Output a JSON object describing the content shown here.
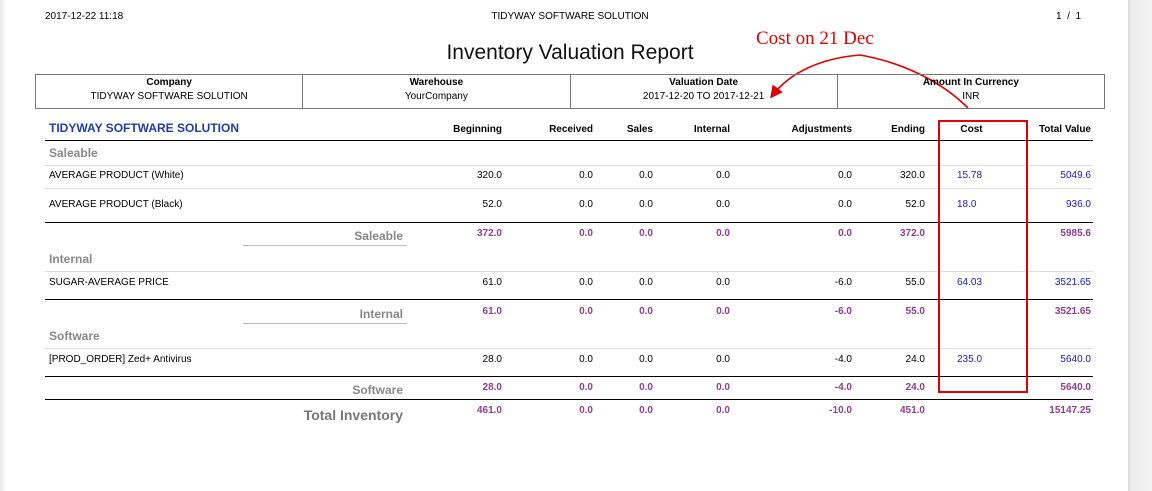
{
  "header": {
    "datetime": "2017-12-22 11:18",
    "company": "TIDYWAY SOFTWARE SOLUTION",
    "page_current": "1",
    "page_sep": "/",
    "page_total": "1"
  },
  "title": "Inventory Valuation Report",
  "annotation": "Cost on 21 Dec",
  "annotation_color": "#e00000",
  "info": [
    {
      "label": "Company",
      "value": "TIDYWAY SOFTWARE SOLUTION"
    },
    {
      "label": "Warehouse",
      "value": "YourCompany"
    },
    {
      "label": "Valuation Date",
      "value": "2017-12-20 TO 2017-12-21"
    },
    {
      "label": "Amount In Currency",
      "value": "INR"
    }
  ],
  "table": {
    "company": "TIDYWAY SOFTWARE SOLUTION",
    "columns": [
      "Beginning",
      "Received",
      "Sales",
      "Internal",
      "Adjustments",
      "Ending",
      "Cost",
      "Total Value"
    ],
    "categories": [
      {
        "name": "Saleable",
        "products": [
          {
            "name": "AVERAGE PRODUCT (White)",
            "values": [
              "320.0",
              "0.0",
              "0.0",
              "0.0",
              "0.0",
              "320.0",
              "15.78",
              "5049.6"
            ]
          },
          {
            "name": "AVERAGE PRODUCT (Black)",
            "values": [
              "52.0",
              "0.0",
              "0.0",
              "0.0",
              "0.0",
              "52.0",
              "18.0",
              "936.0"
            ]
          }
        ],
        "subtotal": {
          "label": "Saleable",
          "values": [
            "372.0",
            "0.0",
            "0.0",
            "0.0",
            "0.0",
            "372.0",
            "",
            "5985.6"
          ]
        }
      },
      {
        "name": "Internal",
        "products": [
          {
            "name": "SUGAR-AVERAGE PRICE",
            "values": [
              "61.0",
              "0.0",
              "0.0",
              "0.0",
              "-6.0",
              "55.0",
              "64.03",
              "3521.65"
            ]
          }
        ],
        "subtotal": {
          "label": "Internal",
          "values": [
            "61.0",
            "0.0",
            "0.0",
            "0.0",
            "-6.0",
            "55.0",
            "",
            "3521.65"
          ]
        }
      },
      {
        "name": "Software",
        "products": [
          {
            "name": "[PROD_ORDER] Zed+ Antivirus",
            "values": [
              "28.0",
              "0.0",
              "0.0",
              "0.0",
              "-4.0",
              "24.0",
              "235.0",
              "5640.0"
            ]
          }
        ],
        "subtotal": {
          "label": "Software",
          "values": [
            "28.0",
            "0.0",
            "0.0",
            "0.0",
            "-4.0",
            "24.0",
            "",
            "5640.0"
          ]
        }
      }
    ],
    "total": {
      "label": "Total Inventory",
      "values": [
        "461.0",
        "0.0",
        "0.0",
        "0.0",
        "-10.0",
        "451.0",
        "",
        "15147.25"
      ]
    }
  }
}
